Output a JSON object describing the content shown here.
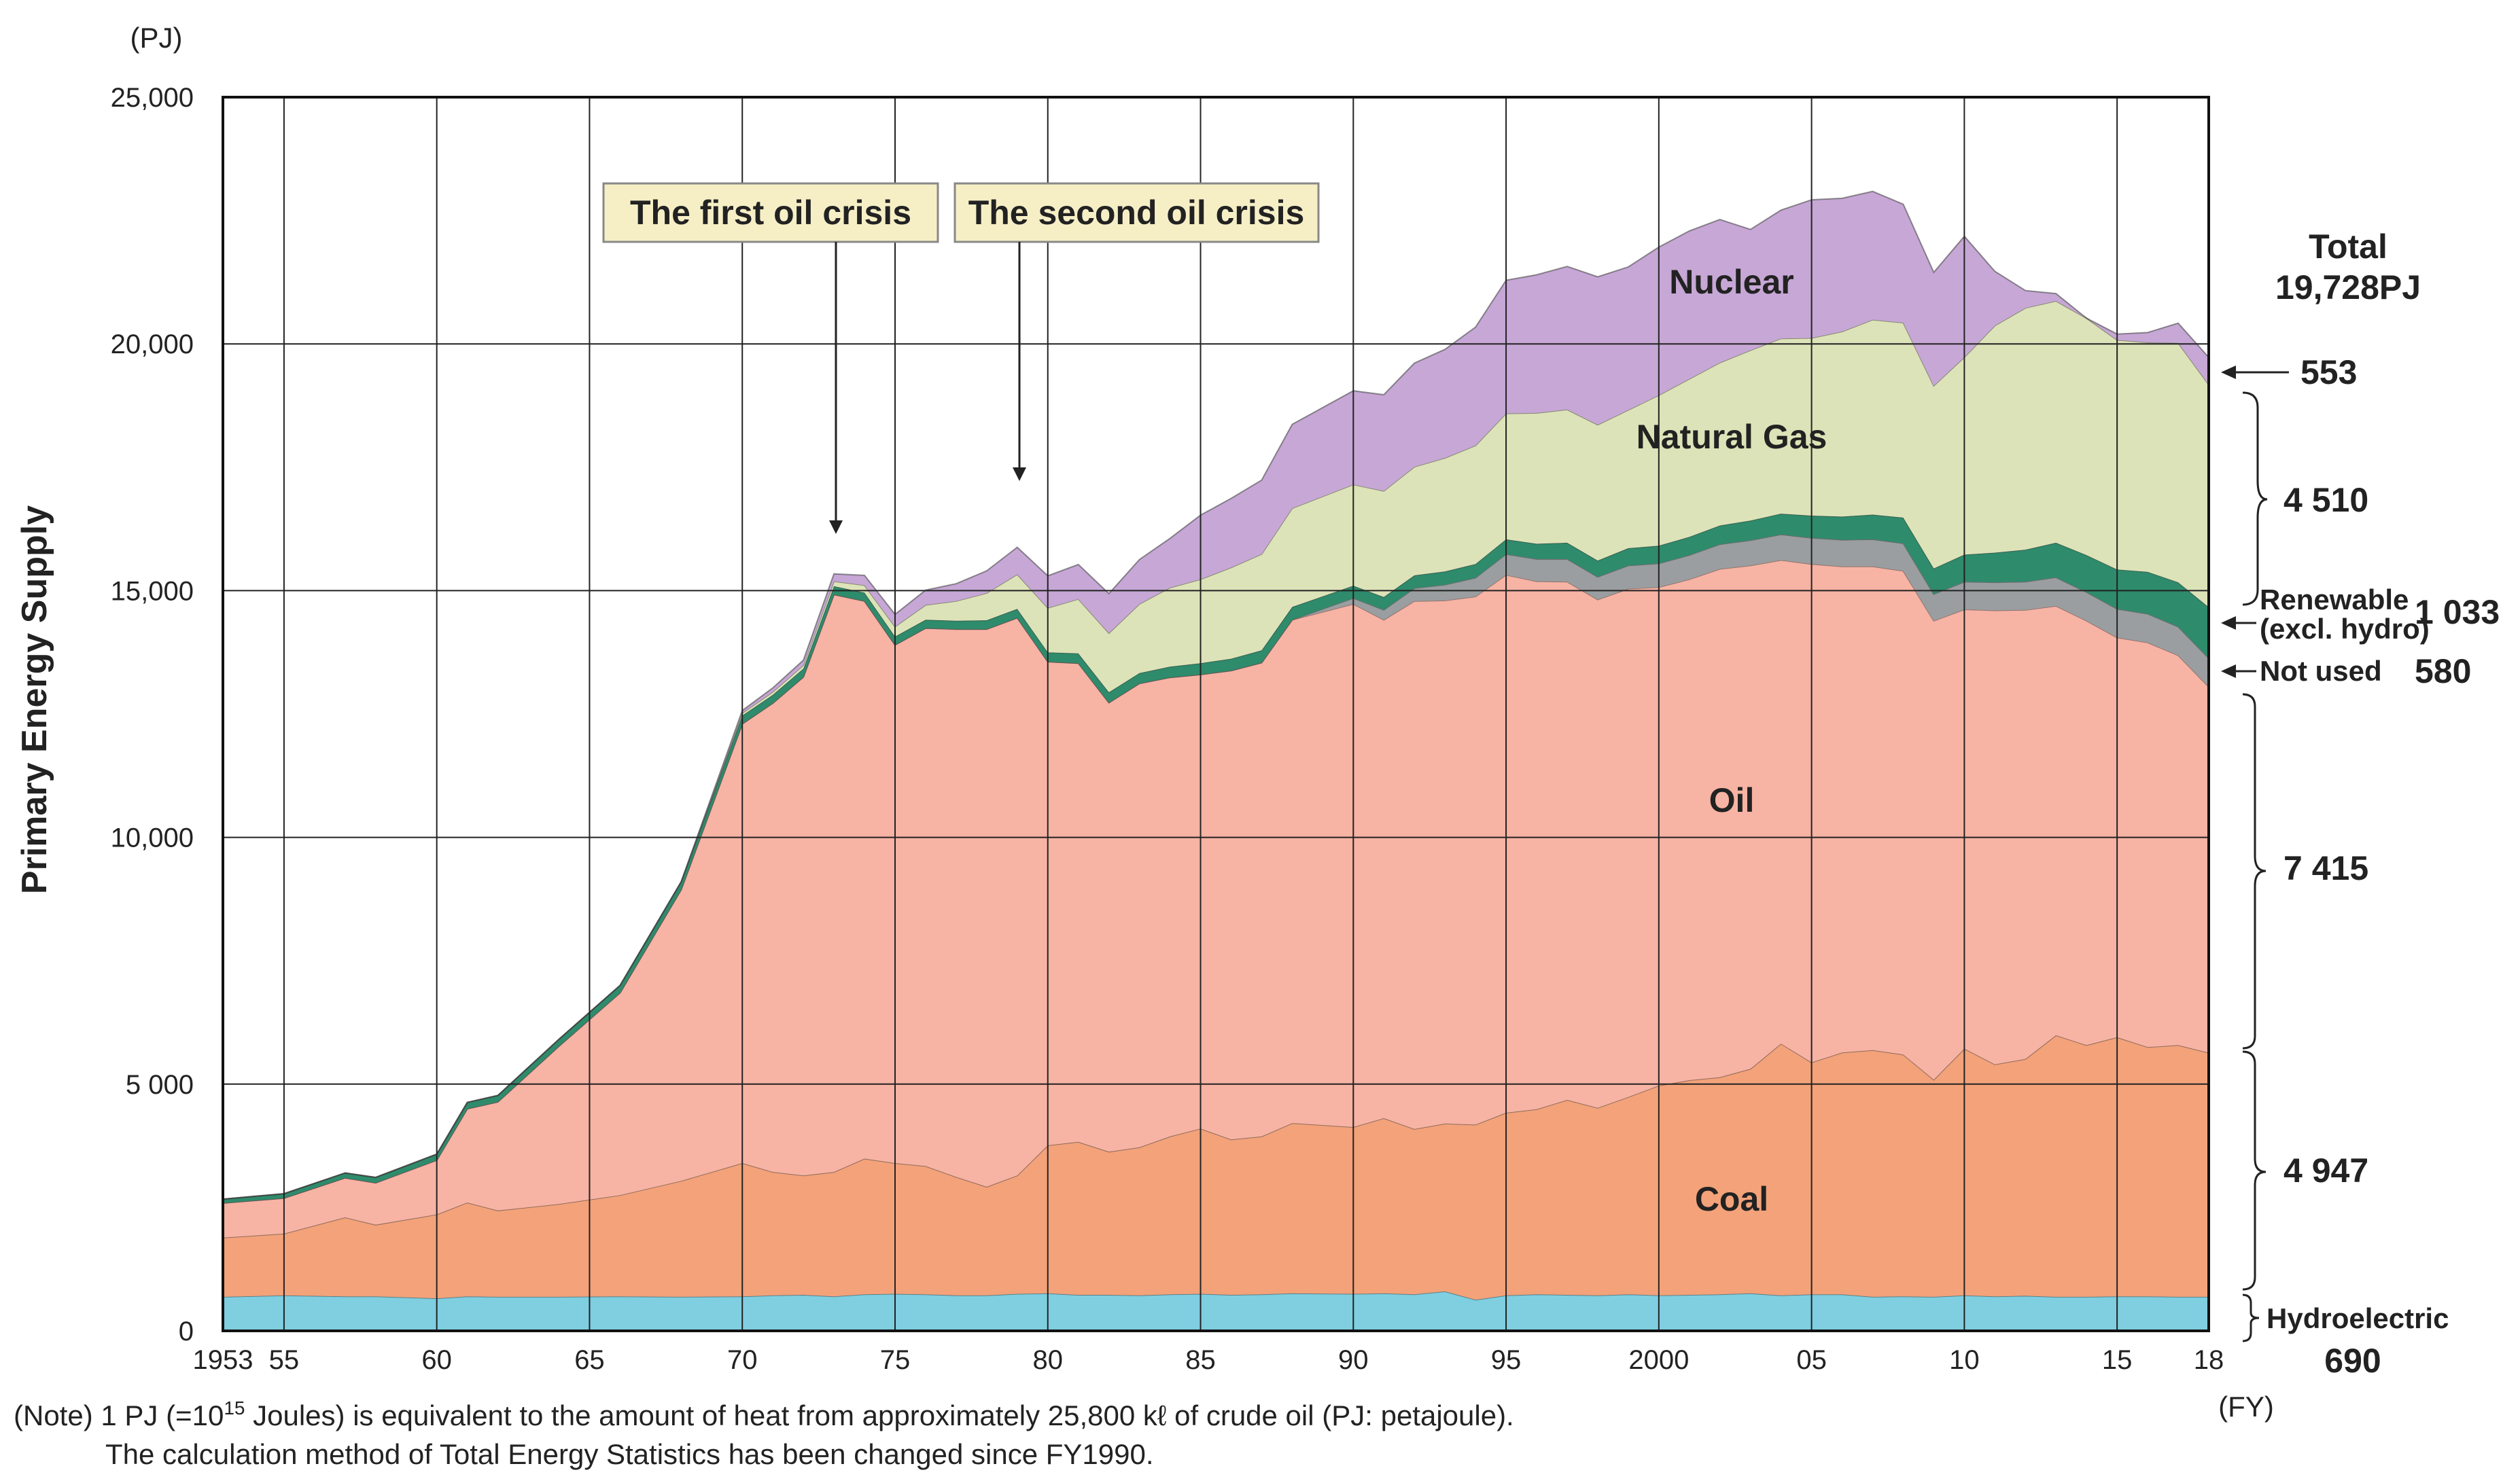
{
  "chart_data": {
    "type": "area",
    "title": "",
    "ylabel": "Primary Energy Supply",
    "yunit": "(PJ)",
    "xunit": "(FY)",
    "ylim": [
      0,
      25000
    ],
    "xlim": [
      1953,
      2018
    ],
    "y_ticks": [
      {
        "value": 0,
        "label": "0"
      },
      {
        "value": 5000,
        "label": "5 000"
      },
      {
        "value": 10000,
        "label": "10,000"
      },
      {
        "value": 15000,
        "label": "15,000"
      },
      {
        "value": 20000,
        "label": "20,000"
      },
      {
        "value": 25000,
        "label": "25,000"
      }
    ],
    "x_ticks": [
      {
        "value": 1953,
        "label": "1953"
      },
      {
        "value": 1955,
        "label": "55"
      },
      {
        "value": 1960,
        "label": "60"
      },
      {
        "value": 1965,
        "label": "65"
      },
      {
        "value": 1970,
        "label": "70"
      },
      {
        "value": 1975,
        "label": "75"
      },
      {
        "value": 1980,
        "label": "80"
      },
      {
        "value": 1985,
        "label": "85"
      },
      {
        "value": 1990,
        "label": "90"
      },
      {
        "value": 1995,
        "label": "95"
      },
      {
        "value": 2000,
        "label": "2000"
      },
      {
        "value": 2005,
        "label": "05"
      },
      {
        "value": 2010,
        "label": "10"
      },
      {
        "value": 2015,
        "label": "15"
      },
      {
        "value": 2018,
        "label": "18"
      }
    ],
    "x": [
      1953,
      1955,
      1957,
      1958,
      1960,
      1961,
      1962,
      1964,
      1966,
      1968,
      1970,
      1971,
      1972,
      1973,
      1974,
      1975,
      1976,
      1977,
      1978,
      1979,
      1980,
      1981,
      1982,
      1983,
      1984,
      1985,
      1986,
      1987,
      1988,
      1990,
      1991,
      1992,
      1993,
      1994,
      1995,
      1996,
      1997,
      1998,
      1999,
      2000,
      2001,
      2002,
      2003,
      2004,
      2005,
      2006,
      2007,
      2008,
      2009,
      2010,
      2011,
      2012,
      2013,
      2014,
      2015,
      2016,
      2017,
      2018
    ],
    "series": [
      {
        "name": "Hydroelectric",
        "label": "Hydroelectric",
        "color": "#7fcfe0",
        "values": [
          690,
          720,
          700,
          700,
          660,
          700,
          690,
          690,
          700,
          690,
          700,
          720,
          730,
          700,
          740,
          750,
          740,
          720,
          720,
          750,
          760,
          730,
          730,
          720,
          740,
          750,
          730,
          740,
          760,
          750,
          760,
          740,
          800,
          630,
          720,
          740,
          730,
          720,
          740,
          720,
          730,
          740,
          760,
          720,
          740,
          740,
          690,
          700,
          690,
          720,
          700,
          710,
          690,
          690,
          700,
          700,
          690,
          690
        ]
      },
      {
        "name": "Coal",
        "label": "Coal",
        "color": "#f3a27a",
        "values": [
          1200,
          1250,
          1600,
          1450,
          1700,
          1900,
          1750,
          1880,
          2050,
          2350,
          2700,
          2500,
          2420,
          2520,
          2750,
          2650,
          2600,
          2400,
          2200,
          2400,
          3000,
          3100,
          2900,
          3000,
          3200,
          3350,
          3150,
          3200,
          3450,
          3380,
          3550,
          3350,
          3400,
          3550,
          3700,
          3750,
          3950,
          3800,
          4000,
          4250,
          4350,
          4400,
          4550,
          5100,
          4700,
          4900,
          5000,
          4900,
          4400,
          5000,
          4700,
          4800,
          5300,
          5100,
          5250,
          5050,
          5100,
          4947
        ]
      },
      {
        "name": "Oil",
        "label": "Oil",
        "color": "#f7b3a4",
        "values": [
          700,
          720,
          800,
          850,
          1100,
          1900,
          2200,
          3200,
          4100,
          5900,
          8900,
          9500,
          10100,
          11700,
          11300,
          10500,
          10900,
          11100,
          11300,
          11300,
          9800,
          9700,
          9100,
          9400,
          9300,
          9200,
          9500,
          9600,
          10200,
          10600,
          10100,
          10700,
          10600,
          10700,
          10900,
          10700,
          10500,
          10300,
          10300,
          10100,
          10150,
          10300,
          10200,
          9800,
          10100,
          9850,
          9800,
          9800,
          9300,
          8900,
          9200,
          9100,
          8700,
          8600,
          8100,
          8200,
          7900,
          7415
        ]
      },
      {
        "name": "Not used",
        "label": "Not used",
        "color": "#9a9ea0",
        "values": [
          0,
          0,
          0,
          0,
          0,
          0,
          0,
          0,
          0,
          0,
          0,
          0,
          0,
          0,
          0,
          0,
          0,
          0,
          0,
          0,
          0,
          0,
          0,
          0,
          0,
          0,
          0,
          0,
          0,
          120,
          200,
          260,
          320,
          380,
          420,
          450,
          460,
          460,
          470,
          480,
          490,
          500,
          510,
          520,
          530,
          540,
          550,
          560,
          540,
          560,
          570,
          570,
          580,
          580,
          580,
          580,
          580,
          580
        ]
      },
      {
        "name": "Renewable (excl. hydro)",
        "label": "Renewable (excl. hydro)",
        "color": "#2e8b6b",
        "values": [
          80,
          90,
          100,
          110,
          120,
          130,
          130,
          140,
          150,
          160,
          170,
          170,
          170,
          170,
          170,
          170,
          170,
          170,
          180,
          180,
          190,
          200,
          210,
          210,
          220,
          230,
          240,
          250,
          260,
          250,
          260,
          260,
          270,
          280,
          300,
          310,
          330,
          330,
          350,
          360,
          370,
          380,
          400,
          420,
          450,
          470,
          500,
          520,
          520,
          550,
          600,
          650,
          700,
          750,
          800,
          850,
          900,
          1033
        ]
      },
      {
        "name": "Natural Gas",
        "label": "Natural Gas",
        "color": "#dde3b8",
        "values": [
          0,
          0,
          0,
          0,
          0,
          0,
          0,
          0,
          0,
          0,
          50,
          60,
          70,
          100,
          150,
          200,
          300,
          400,
          550,
          700,
          900,
          1100,
          1200,
          1400,
          1600,
          1700,
          1850,
          1950,
          2000,
          2050,
          2150,
          2200,
          2300,
          2400,
          2550,
          2650,
          2700,
          2750,
          2800,
          3050,
          3200,
          3300,
          3450,
          3550,
          3600,
          3750,
          3950,
          3950,
          3700,
          4000,
          4600,
          4900,
          4900,
          4800,
          4650,
          4650,
          4850,
          4510
        ]
      },
      {
        "name": "Nuclear",
        "label": "Nuclear",
        "color": "#c6a7d5",
        "values": [
          0,
          0,
          0,
          0,
          0,
          0,
          0,
          0,
          0,
          0,
          50,
          80,
          100,
          150,
          200,
          250,
          300,
          350,
          450,
          550,
          650,
          700,
          800,
          900,
          1000,
          1300,
          1400,
          1500,
          1700,
          1900,
          1950,
          2100,
          2200,
          2400,
          2700,
          2800,
          2900,
          3000,
          2900,
          3000,
          3000,
          2900,
          2450,
          2600,
          2800,
          2700,
          2600,
          2400,
          2300,
          2450,
          1100,
          350,
          150,
          0,
          120,
          200,
          400,
          553
        ]
      }
    ],
    "labels": [
      {
        "text": "Nuclear",
        "series": "Nuclear"
      },
      {
        "text": "Natural Gas",
        "series": "Natural Gas"
      },
      {
        "text": "Oil",
        "series": "Oil"
      },
      {
        "text": "Coal",
        "series": "Coal"
      }
    ],
    "annotations": [
      {
        "text": "The first oil crisis",
        "year": 1973
      },
      {
        "text": "The second oil crisis",
        "year": 1979
      }
    ],
    "right_labels": {
      "total_title": "Total",
      "total_value": "19,728PJ",
      "nuclear": "553",
      "natural_gas": "4 510",
      "renewable_label_1": "Renewable",
      "renewable_label_2": "(excl. hydro)",
      "renewable_value": "1 033",
      "not_used_label": "Not used",
      "not_used_value": "580",
      "oil": "7 415",
      "coal": "4 947",
      "hydro_label": "Hydroelectric",
      "hydro_value": "690"
    }
  },
  "note": {
    "prefix": "(Note) 1 PJ (=10",
    "sup": "15",
    "suffix": " Joules) is equivalent to the amount of heat from approximately 25,800 kℓ of crude oil (PJ: petajoule).",
    "line2": "The calculation method of Total Energy Statistics has been changed since FY1990."
  }
}
